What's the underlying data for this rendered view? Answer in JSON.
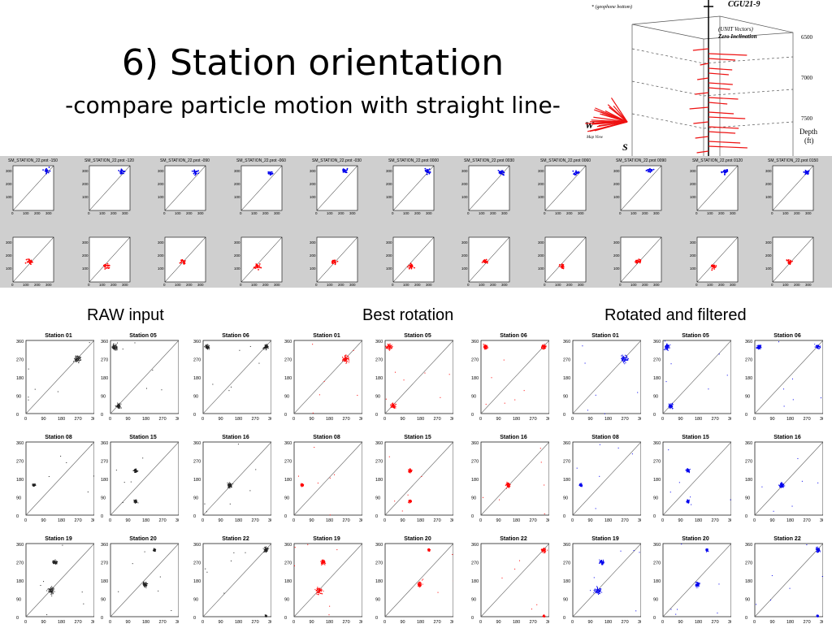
{
  "slide": {
    "title": "6) Station orientation",
    "subtitle": "-compare particle motion with straight line-"
  },
  "inset": {
    "note": "* (geophone bottom)",
    "well": "CGU21-9",
    "unit_line1": "(UNIT Vectors)",
    "unit_line2": "Zero Inclination",
    "depths": [
      "6500",
      "7000",
      "7500"
    ],
    "depth_label": "Depth",
    "depth_unit": "(ft)",
    "west": "W",
    "south": "S",
    "map_view": "Map View"
  },
  "rotation_strip": {
    "plot_titles": [
      "SM_STATION_22.prot -150",
      "SM_STATION_22.prot -120",
      "SM_STATION_22.prot -090",
      "SM_STATION_22.prot -060",
      "SM_STATION_22.prot -030",
      "SM_STATION_22.prot 0000",
      "SM_STATION_22.prot 0030",
      "SM_STATION_22.prot 0060",
      "SM_STATION_22.prot 0090",
      "SM_STATION_22.prot 0120",
      "SM_STATION_22.prot 0150"
    ],
    "y_ticks": [
      "300",
      "200",
      "100"
    ],
    "x_ticks": [
      "0",
      "100",
      "200",
      "300"
    ]
  },
  "groups": [
    {
      "label": "RAW input",
      "color": "#222222"
    },
    {
      "label": "Best rotation",
      "color": "#ff0000"
    },
    {
      "label": "Rotated and filtered",
      "color": "#0000ee"
    }
  ],
  "stations": [
    [
      "Station 01",
      "Station 05",
      "Station 06"
    ],
    [
      "Station 08",
      "Station 15",
      "Station 16"
    ],
    [
      "Station 19",
      "Station 20",
      "Station 22"
    ]
  ],
  "axis": {
    "y_ticks": [
      "360",
      "270",
      "180",
      "90",
      "0"
    ],
    "x_ticks": [
      "0",
      "90",
      "180",
      "270",
      "360"
    ]
  },
  "colors": {
    "band": "#cfcfcf",
    "raw": "#222222",
    "best": "#ff0000",
    "filtered": "#0000ee"
  }
}
